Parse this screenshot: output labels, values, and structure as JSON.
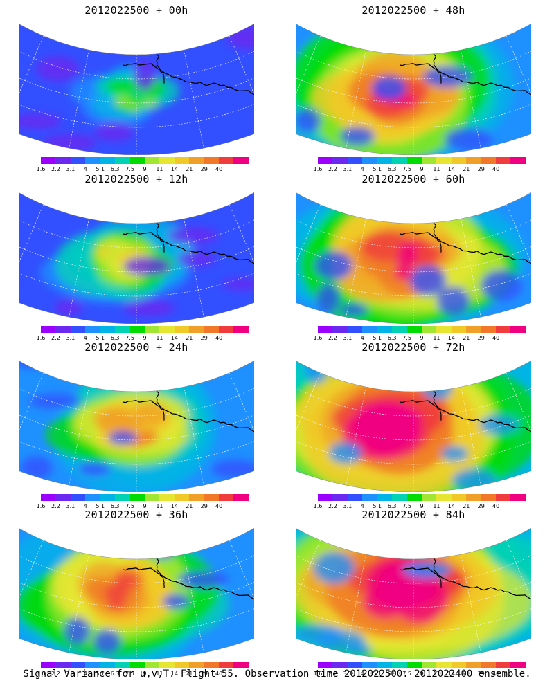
{
  "panels": [
    {
      "title": "2012022500 + 00h",
      "intensity": 0.25
    },
    {
      "title": "2012022500 + 48h",
      "intensity": 0.75
    },
    {
      "title": "2012022500 + 12h",
      "intensity": 0.4
    },
    {
      "title": "2012022500 + 60h",
      "intensity": 0.8
    },
    {
      "title": "2012022500 + 24h",
      "intensity": 0.55
    },
    {
      "title": "2012022500 + 72h",
      "intensity": 0.85
    },
    {
      "title": "2012022500 + 36h",
      "intensity": 0.65
    },
    {
      "title": "2012022500 + 84h",
      "intensity": 0.9
    }
  ],
  "colorbar": {
    "colors": [
      "#9b00ff",
      "#6b28f0",
      "#3250ff",
      "#1e90ff",
      "#00b4e6",
      "#00d2b4",
      "#00dc00",
      "#a0e632",
      "#e6e632",
      "#f0c828",
      "#f0a028",
      "#f07828",
      "#f03c3c",
      "#f00080"
    ],
    "tick_labels": [
      "1.6",
      "2.2",
      "3.1",
      "4",
      "5.1",
      "6.3",
      "7.5",
      "9",
      "11",
      "14",
      "21",
      "29",
      "40"
    ]
  },
  "caption": "Signal Variance for u,v,T. Flight 55. Observation time 2012022500. 2012022400 ensemble."
}
